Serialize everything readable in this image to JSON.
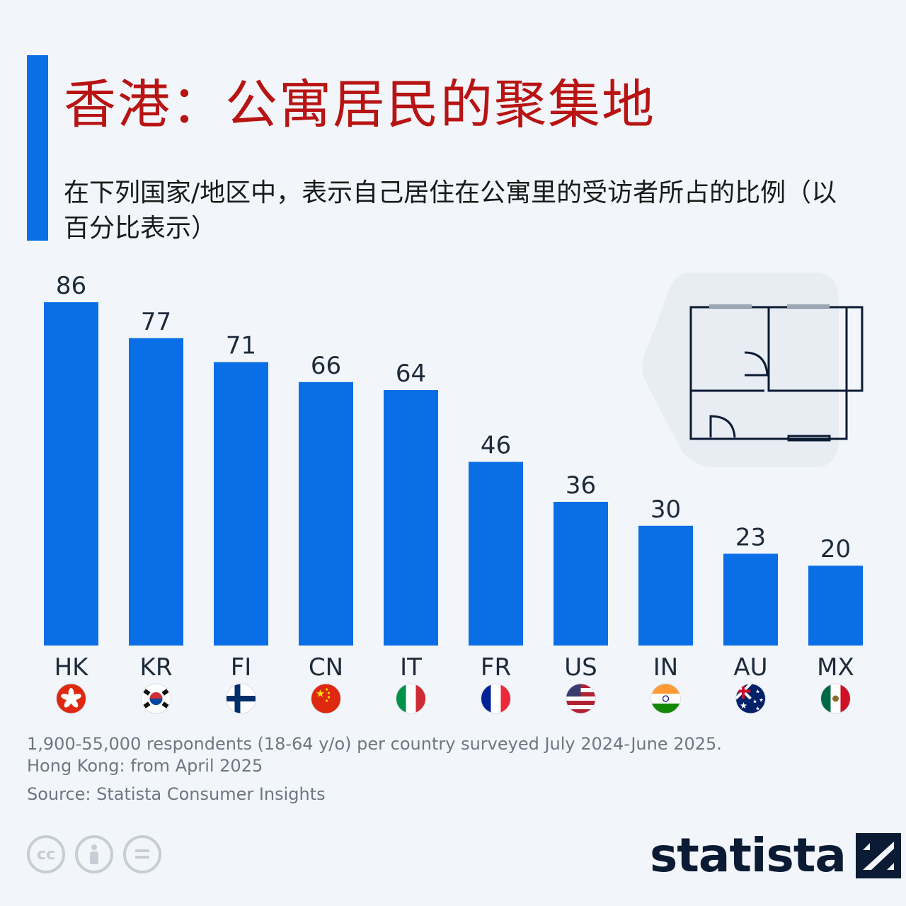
{
  "title": "香港：公寓居民的聚集地",
  "subtitle": "在下列国家/地区中，表示自己居住在公寓里的受访者所占的比例（以百分比表示）",
  "note_line1": "1,900-55,000 respondents (18-64 y/o) per country surveyed July 2024-June 2025.",
  "note_line2": "Hong Kong: from April 2025",
  "source": "Source: Statista Consumer Insights",
  "brand": "statista",
  "license_icons": [
    "cc-icon",
    "attribution-icon",
    "no-derivatives-icon"
  ],
  "colors": {
    "bar": "#0a6ee6",
    "title": "#b81414",
    "accent": "#0a6ee6"
  },
  "chart_data": {
    "type": "bar",
    "categories": [
      "HK",
      "KR",
      "FI",
      "CN",
      "IT",
      "FR",
      "US",
      "IN",
      "AU",
      "MX"
    ],
    "values": [
      86,
      77,
      71,
      66,
      64,
      46,
      36,
      30,
      23,
      20
    ],
    "title": "香港：公寓居民的聚集地",
    "xlabel": "",
    "ylabel": "",
    "ylim": [
      0,
      86
    ],
    "grid": false,
    "legend": "none",
    "flags": [
      "hong-kong-flag",
      "south-korea-flag",
      "finland-flag",
      "china-flag",
      "italy-flag",
      "france-flag",
      "usa-flag",
      "india-flag",
      "australia-flag",
      "mexico-flag"
    ]
  }
}
